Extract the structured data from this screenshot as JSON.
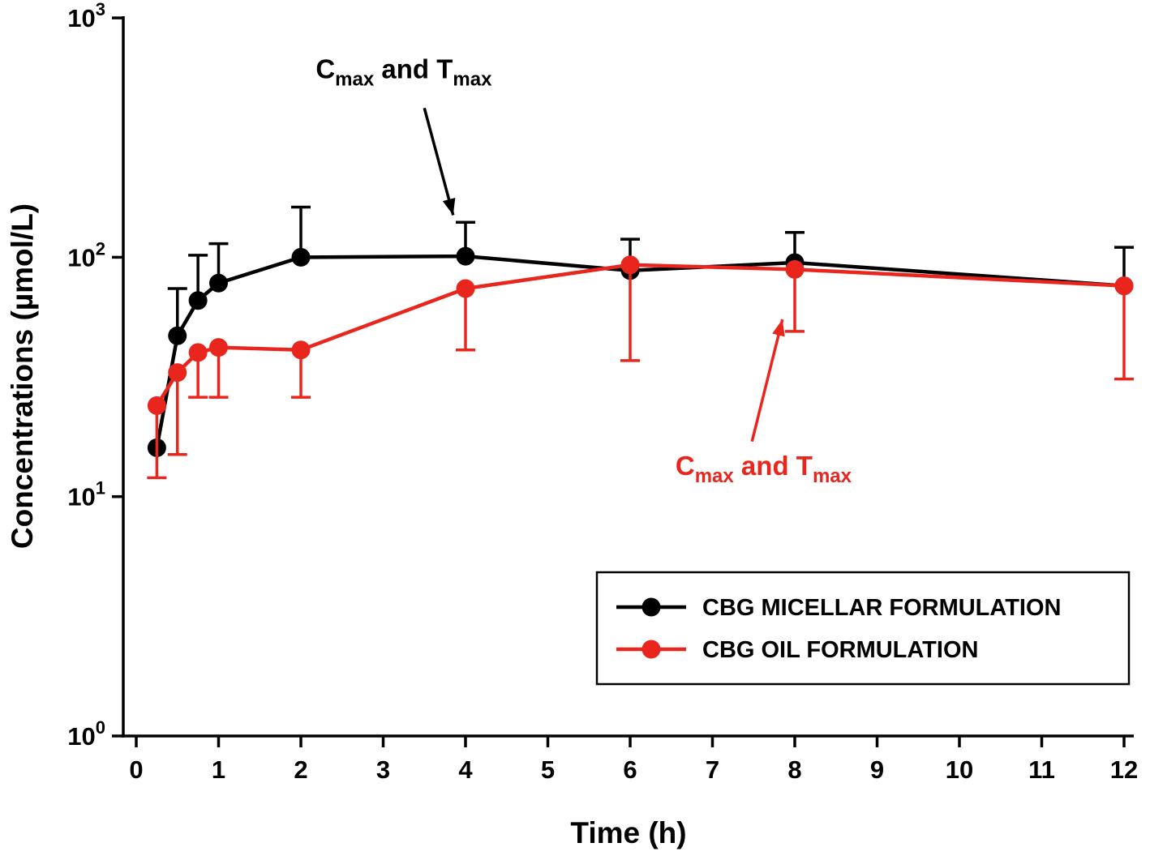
{
  "figure": {
    "background": "#ffffff"
  },
  "chart_data": {
    "type": "line",
    "title": "",
    "xlabel": "Time (h)",
    "ylabel": "Concentrations (µmol/L)",
    "x_ticks": [
      0,
      1,
      2,
      3,
      4,
      5,
      6,
      7,
      8,
      9,
      10,
      11,
      12
    ],
    "xlim": [
      0,
      12.1
    ],
    "y_scale": "log",
    "ylim": [
      1,
      1000
    ],
    "y_ticks": [
      1,
      10,
      100,
      1000
    ],
    "grid": false,
    "legend_position": "bottom-right",
    "series": [
      {
        "name": "CBG MICELLAR FORMULATION",
        "color": "#000000",
        "x": [
          0.25,
          0.5,
          0.75,
          1,
          2,
          4,
          6,
          8,
          12
        ],
        "y": [
          16,
          47,
          66,
          78,
          100,
          101,
          88,
          95,
          76
        ],
        "err_upper": [
          null,
          74,
          102,
          114,
          162,
          140,
          119,
          127,
          110
        ],
        "err_lower": [
          null,
          null,
          null,
          null,
          null,
          null,
          null,
          null,
          null
        ]
      },
      {
        "name": "CBG OIL FORMULATION",
        "color": "#e8261d",
        "x": [
          0.25,
          0.5,
          0.75,
          1,
          2,
          4,
          6,
          8,
          12
        ],
        "y": [
          24,
          33,
          40,
          42,
          41,
          74,
          93,
          89,
          76
        ],
        "err_upper": [
          null,
          null,
          null,
          null,
          null,
          null,
          null,
          null,
          null
        ],
        "err_lower": [
          12,
          15,
          26,
          26,
          26,
          41,
          37,
          49,
          31
        ]
      }
    ],
    "annotations": [
      {
        "name": "cmax-tmax-micellar",
        "color": "#000000",
        "segments": [
          {
            "t": "C",
            "sub": false
          },
          {
            "t": "max",
            "sub": true
          },
          {
            "t": " and T",
            "sub": false
          },
          {
            "t": "max",
            "sub": true
          }
        ],
        "text_x": 3.25,
        "text_y": 560,
        "arrow": {
          "x1": 3.5,
          "y1": 420,
          "x2": 3.85,
          "y2": 150
        }
      },
      {
        "name": "cmax-tmax-oil",
        "color": "#e8261d",
        "segments": [
          {
            "t": "C",
            "sub": false
          },
          {
            "t": "max",
            "sub": true
          },
          {
            "t": " and T",
            "sub": false
          },
          {
            "t": "max",
            "sub": true
          }
        ],
        "text_x": 7.62,
        "text_y": 12.3,
        "arrow": {
          "x1": 7.48,
          "y1": 17,
          "x2": 7.85,
          "y2": 55
        }
      }
    ]
  }
}
